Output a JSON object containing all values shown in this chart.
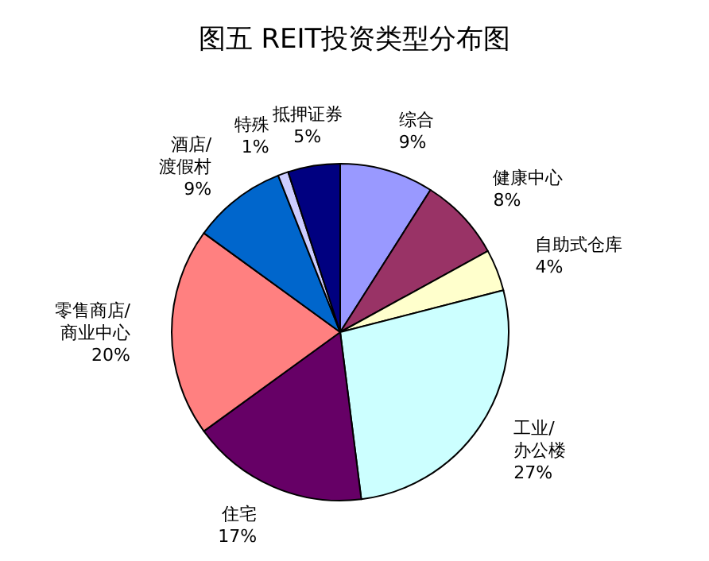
{
  "chart_data": {
    "type": "pie",
    "title": "图五 REIT投资类型分布图",
    "categories": [
      "综合",
      "健康中心",
      "自助式仓库",
      "工业/办公楼",
      "住宅",
      "零售商店/商业中心",
      "酒店/渡假村",
      "特殊",
      "抵押证券"
    ],
    "values": [
      9,
      8,
      4,
      27,
      17,
      20,
      9,
      1,
      5
    ],
    "value_labels": [
      "9%",
      "8%",
      "4%",
      "27%",
      "17%",
      "20%",
      "9%",
      "1%",
      "5%"
    ],
    "colors": [
      "#9999ff",
      "#993366",
      "#ffffcc",
      "#ccffff",
      "#660066",
      "#ff8080",
      "#0066cc",
      "#ccccff",
      "#000080"
    ],
    "legend": false
  }
}
